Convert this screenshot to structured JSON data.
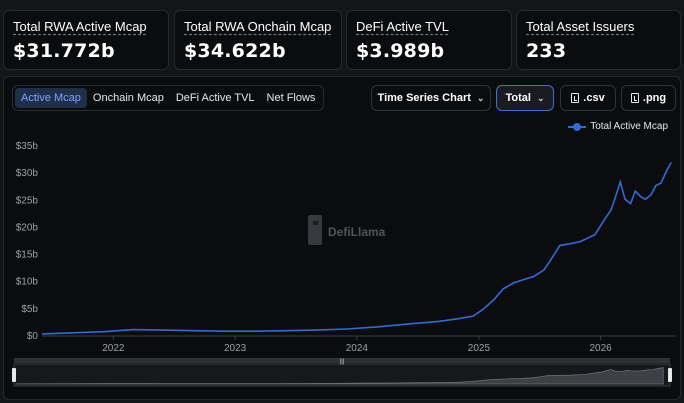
{
  "stats": [
    {
      "label": "Total RWA Active Mcap",
      "value": "$31.772b"
    },
    {
      "label": "Total RWA Onchain Mcap",
      "value": "$34.622b"
    },
    {
      "label": "DeFi Active TVL",
      "value": "$3.989b"
    },
    {
      "label": "Total Asset Issuers",
      "value": "233"
    }
  ],
  "tabs": [
    {
      "label": "Active Mcap",
      "active": true
    },
    {
      "label": "Onchain Mcap",
      "active": false
    },
    {
      "label": "DeFi Active TVL",
      "active": false
    },
    {
      "label": "Net Flows",
      "active": false
    }
  ],
  "controls": {
    "chart_type": "Time Series Chart",
    "grouping": "Total",
    "csv": ".csv",
    "png": ".png"
  },
  "watermark": "DefiLlama",
  "colors": {
    "line": "#2f6bd9",
    "active_tab_bg": "#1f2e49",
    "active_tab_text": "#7fa4ff",
    "focus_border": "#3f6fd8"
  },
  "chart_data": {
    "type": "line",
    "series": [
      {
        "name": "Total Active Mcap",
        "x": [
          "2021-06-01",
          "2021-09-01",
          "2021-12-01",
          "2022-03-01",
          "2022-06-01",
          "2022-09-01",
          "2022-12-01",
          "2023-03-01",
          "2023-06-01",
          "2023-09-01",
          "2023-12-01",
          "2024-03-01",
          "2024-06-01",
          "2024-09-01",
          "2024-11-01",
          "2024-12-15",
          "2025-01-15",
          "2025-02-15",
          "2025-03-15",
          "2025-04-15",
          "2025-05-15",
          "2025-06-15",
          "2025-07-15",
          "2025-08-01",
          "2025-09-01",
          "2025-10-01",
          "2025-11-01",
          "2025-12-15",
          "2026-01-15",
          "2026-02-01",
          "2026-02-15",
          "2026-03-01",
          "2026-03-15",
          "2026-04-01",
          "2026-04-15",
          "2026-05-01",
          "2026-05-15",
          "2026-06-01",
          "2026-06-15",
          "2026-07-01",
          "2026-07-20",
          "2026-08-01"
        ],
        "values": [
          0.2,
          0.4,
          0.6,
          1.0,
          0.9,
          0.8,
          0.7,
          0.7,
          0.8,
          0.9,
          1.1,
          1.5,
          2.0,
          2.5,
          3.0,
          3.5,
          4.8,
          6.5,
          8.5,
          9.6,
          10.2,
          10.8,
          12.0,
          13.5,
          16.5,
          16.8,
          17.2,
          18.5,
          21.5,
          23.0,
          25.5,
          28.2,
          25.0,
          24.2,
          26.5,
          25.5,
          25.0,
          25.8,
          27.5,
          28.0,
          30.5,
          31.8
        ]
      }
    ],
    "xticks": [
      "2022",
      "2023",
      "2024",
      "2025",
      "2026"
    ],
    "yticks": [
      "$0",
      "$5b",
      "$10b",
      "$15b",
      "$20b",
      "$25b",
      "$30b",
      "$35b"
    ],
    "ylim": [
      0,
      35
    ],
    "xlim": [
      "2021-06-01",
      "2026-08-15"
    ],
    "grid": false,
    "legend": "top-right"
  }
}
